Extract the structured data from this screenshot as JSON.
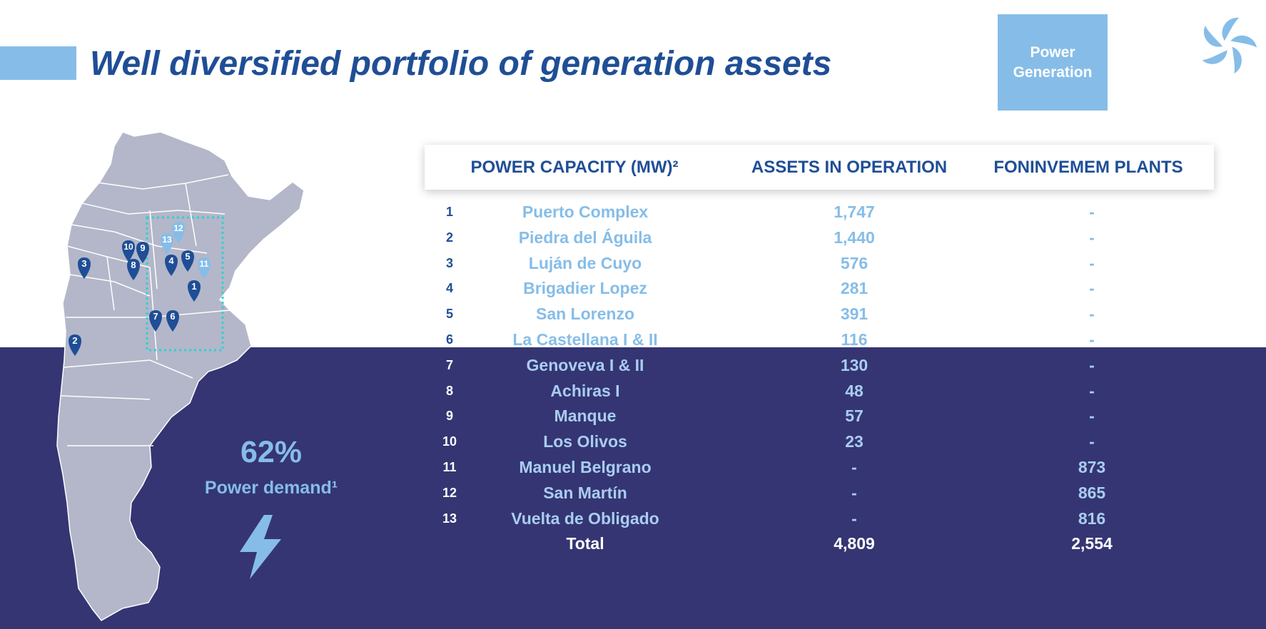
{
  "title": "Well diversified portfolio of generation assets",
  "badge": {
    "line1": "Power",
    "line2": "Generation"
  },
  "logo_icon": "pinwheel-logo-icon",
  "stat": {
    "value": "62%",
    "label": "Power demand¹",
    "icon": "lightning-bolt-icon"
  },
  "table": {
    "headers": [
      "POWER CAPACITY (MW)²",
      "ASSETS IN OPERATION",
      "FONINVEMEM PLANTS"
    ],
    "rows": [
      {
        "num": "1",
        "name": "Puerto Complex",
        "assets": "1,747",
        "foninvemem": "-"
      },
      {
        "num": "2",
        "name": "Piedra del Águila",
        "assets": "1,440",
        "foninvemem": "-"
      },
      {
        "num": "3",
        "name": "Luján de Cuyo",
        "assets": "576",
        "foninvemem": "-"
      },
      {
        "num": "4",
        "name": "Brigadier Lopez",
        "assets": "281",
        "foninvemem": "-"
      },
      {
        "num": "5",
        "name": "San Lorenzo",
        "assets": "391",
        "foninvemem": "-"
      },
      {
        "num": "6",
        "name": "La Castellana I & II",
        "assets": "116",
        "foninvemem": "-"
      },
      {
        "num": "7",
        "name": "Genoveva I & II",
        "assets": "130",
        "foninvemem": "-"
      },
      {
        "num": "8",
        "name": "Achiras I",
        "assets": "48",
        "foninvemem": "-"
      },
      {
        "num": "9",
        "name": "Manque",
        "assets": "57",
        "foninvemem": "-"
      },
      {
        "num": "10",
        "name": "Los Olivos",
        "assets": "23",
        "foninvemem": "-"
      },
      {
        "num": "11",
        "name": "Manuel Belgrano",
        "assets": "-",
        "foninvemem": "873"
      },
      {
        "num": "12",
        "name": "San Martín",
        "assets": "-",
        "foninvemem": "865"
      },
      {
        "num": "13",
        "name": "Vuelta de Obligado",
        "assets": "-",
        "foninvemem": "816"
      }
    ],
    "total": {
      "label": "Total",
      "assets": "4,809",
      "foninvemem": "2,554"
    }
  },
  "map": {
    "icon": "argentina-map",
    "markers": [
      {
        "label": "1",
        "color": "#1f4e96"
      },
      {
        "label": "2",
        "color": "#1f4e96"
      },
      {
        "label": "3",
        "color": "#1f4e96"
      },
      {
        "label": "4",
        "color": "#1f4e96"
      },
      {
        "label": "5",
        "color": "#1f4e96"
      },
      {
        "label": "6",
        "color": "#1f4e96"
      },
      {
        "label": "7",
        "color": "#1f4e96"
      },
      {
        "label": "8",
        "color": "#1f4e96"
      },
      {
        "label": "9",
        "color": "#1f4e96"
      },
      {
        "label": "10",
        "color": "#1f4e96"
      },
      {
        "label": "11",
        "color": "#86bde8"
      },
      {
        "label": "12",
        "color": "#86bde8"
      },
      {
        "label": "13",
        "color": "#86bde8"
      }
    ]
  },
  "colors": {
    "navy": "#353573",
    "title_blue": "#1f4e96",
    "light_blue": "#86bde8",
    "map_gray": "#b3b7c9",
    "highlight_teal": "#30d0d0"
  }
}
